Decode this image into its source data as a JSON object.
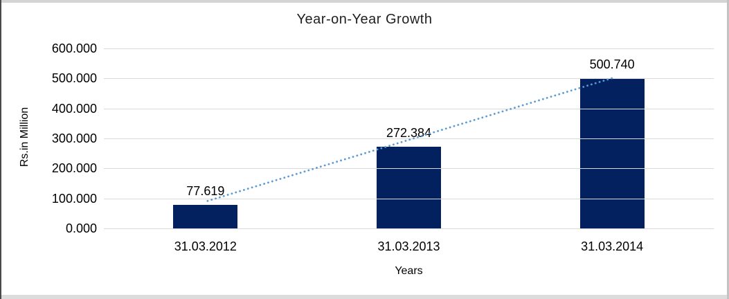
{
  "chart_data": {
    "type": "bar",
    "title": "Year-on-Year Growth",
    "xlabel": "Years",
    "ylabel": "Rs.in Million",
    "categories": [
      "31.03.2012",
      "31.03.2013",
      "31.03.2014"
    ],
    "values": [
      77.619,
      272.384,
      500.74
    ],
    "data_labels": [
      "77.619",
      "272.384",
      "500.740"
    ],
    "ylim": [
      0,
      600
    ],
    "ytick_step": 100,
    "ytick_labels": [
      "0.000",
      "100.000",
      "200.000",
      "300.000",
      "400.000",
      "500.000",
      "600.000"
    ],
    "grid": true,
    "legend_position": "none",
    "bar_color": "#03215f",
    "trendline": {
      "type": "linear",
      "style": "dotted",
      "color": "#5b9bd5"
    },
    "gridline_color": "#d9d9d9",
    "text_color": "#000000"
  }
}
